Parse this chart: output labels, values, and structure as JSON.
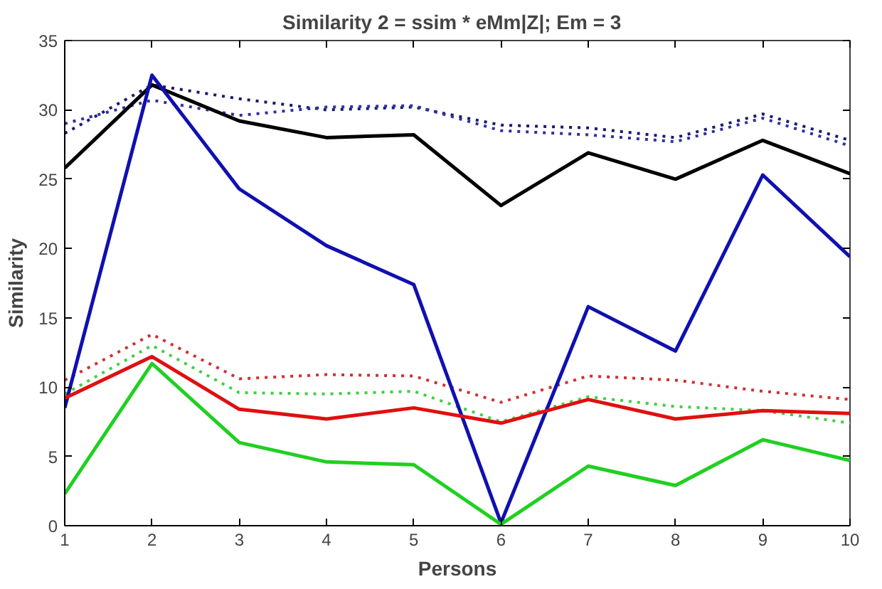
{
  "chart_data": {
    "type": "line",
    "title": "Similarity 2 = ssim * eMm|Z|;   Em = 3",
    "xlabel": "Persons",
    "ylabel": "Similarity",
    "x": [
      1,
      2,
      3,
      4,
      5,
      6,
      7,
      8,
      9,
      10
    ],
    "xlim": [
      1,
      10
    ],
    "xticks": [
      1,
      2,
      3,
      4,
      5,
      6,
      7,
      8,
      9,
      10
    ],
    "ylim": [
      0,
      35
    ],
    "yticks": [
      0,
      5,
      10,
      15,
      20,
      25,
      30,
      35
    ],
    "grid": false,
    "marker": "none",
    "series": [
      {
        "color": "#1a1a6e",
        "line_style": "dotted",
        "values": [
          28.3,
          31.8,
          30.8,
          30.0,
          30.2,
          28.9,
          28.7,
          28.0,
          29.7,
          27.8
        ]
      },
      {
        "color": "#3030a0",
        "line_style": "dotted",
        "values": [
          29.0,
          30.7,
          29.6,
          30.2,
          30.3,
          28.5,
          28.2,
          27.7,
          29.4,
          27.4
        ]
      },
      {
        "color": "#d03030",
        "line_style": "dotted",
        "values": [
          10.5,
          13.8,
          10.6,
          10.9,
          10.8,
          8.9,
          10.8,
          10.5,
          9.7,
          9.1
        ]
      },
      {
        "color": "#40d040",
        "line_style": "dotted",
        "values": [
          9.5,
          13.0,
          9.6,
          9.5,
          9.7,
          7.5,
          9.3,
          8.6,
          8.3,
          7.4
        ]
      },
      {
        "color": "#000000",
        "line_style": "solid",
        "values": [
          25.8,
          31.8,
          29.2,
          28.0,
          28.2,
          23.1,
          26.9,
          25.0,
          27.8,
          25.4
        ]
      },
      {
        "color": "#1010b0",
        "line_style": "solid",
        "values": [
          8.5,
          32.5,
          24.3,
          20.2,
          17.4,
          0.2,
          15.8,
          12.6,
          25.3,
          19.4
        ]
      },
      {
        "color": "#e01010",
        "line_style": "solid",
        "values": [
          9.2,
          12.2,
          8.4,
          7.7,
          8.5,
          7.4,
          9.1,
          7.7,
          8.3,
          8.1
        ]
      },
      {
        "color": "#20d020",
        "line_style": "solid",
        "values": [
          2.3,
          11.7,
          6.0,
          4.6,
          4.4,
          0.1,
          4.3,
          2.9,
          6.2,
          4.7
        ]
      }
    ]
  }
}
